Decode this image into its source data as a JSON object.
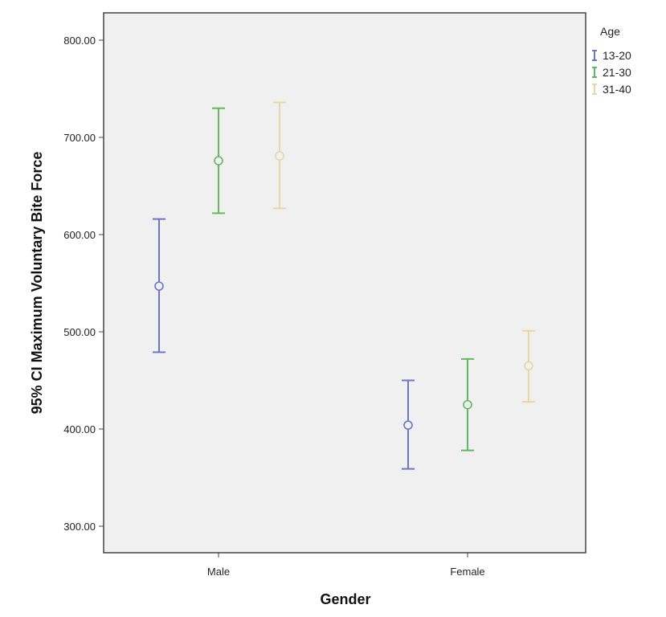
{
  "chart_data": {
    "type": "errorbar",
    "xlabel": "Gender",
    "ylabel": "95% CI Maximum Voluntary Bite Force",
    "categories": [
      "Male",
      "Female"
    ],
    "ylim": [
      280,
      830
    ],
    "yticks": [
      "300.00",
      "400.00",
      "500.00",
      "600.00",
      "700.00",
      "800.00"
    ],
    "ytick_values": [
      300,
      400,
      500,
      600,
      700,
      800
    ],
    "legend_title": "Age",
    "legend_position": "right",
    "grid": false,
    "series": [
      {
        "name": "13-20",
        "color": "#6d75c6",
        "points": [
          {
            "category": "Male",
            "mean": 547,
            "lower": 479,
            "upper": 616
          },
          {
            "category": "Female",
            "mean": 404,
            "lower": 359,
            "upper": 450
          }
        ]
      },
      {
        "name": "21-30",
        "color": "#62b862",
        "points": [
          {
            "category": "Male",
            "mean": 676,
            "lower": 622,
            "upper": 730
          },
          {
            "category": "Female",
            "mean": 425,
            "lower": 378,
            "upper": 472
          }
        ]
      },
      {
        "name": "31-40",
        "color": "#e6d8a4",
        "points": [
          {
            "category": "Male",
            "mean": 681,
            "lower": 627,
            "upper": 736
          },
          {
            "category": "Female",
            "mean": 465,
            "lower": 428,
            "upper": 501
          }
        ]
      }
    ]
  }
}
